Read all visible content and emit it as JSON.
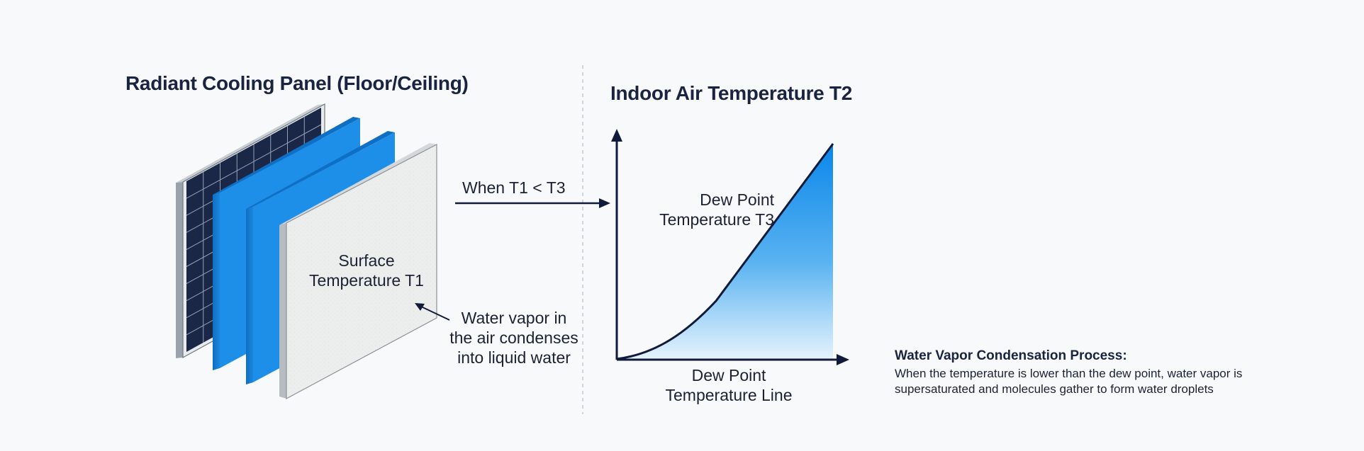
{
  "left_title": "Radiant Cooling Panel (Floor/Ceiling)",
  "right_title": "Indoor Air Temperature T2",
  "arrow_label": "When T1 < T3",
  "surface_label": {
    "line1": "Surface",
    "line2": "Temperature T1"
  },
  "vapor_label": {
    "line1": "Water vapor in",
    "line2": "the air condenses",
    "line3": "into liquid water"
  },
  "curve_label": {
    "line1": "Dew Point",
    "line2": "Temperature T3"
  },
  "axis_label": {
    "line1": "Dew Point",
    "line2": "Temperature Line"
  },
  "process_note": {
    "title": "Water Vapor Condensation Process:",
    "line1": "When the temperature is lower than the dew point, water vapor is",
    "line2": "supersaturated and molecules gather to form water droplets"
  },
  "colors": {
    "blue_layer": "#1e8fe8",
    "solar_cells": "#1b2746",
    "surface_panel": "#eef0ef",
    "fill_top": "#0a86ea",
    "fill_bottom": "#e6f3fd",
    "ink": "#111a3a"
  }
}
